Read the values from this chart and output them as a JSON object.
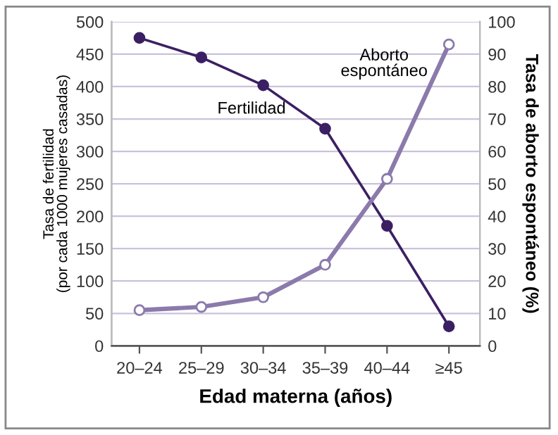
{
  "chart_data": {
    "type": "line",
    "xlabel": "Edad materna (años)",
    "ylabel": "Tasa de fertilidad\n(por cada 1000 mujeres casadas)",
    "y2label": "Tasa de aborto espontáneo (%)",
    "categories": [
      "20–24",
      "25–29",
      "30–34",
      "35–39",
      "40–44",
      "≥45"
    ],
    "series": [
      {
        "name": "Fertilidad",
        "color": "#3b1f63",
        "values": [
          475,
          445,
          402,
          335,
          185,
          30
        ]
      },
      {
        "name": "Aborto\nespontáneo",
        "color": "#8b7aab",
        "axis": "y2",
        "values": [
          11,
          12,
          15,
          25,
          51.5,
          93
        ]
      }
    ],
    "ylim": [
      0,
      500
    ],
    "yticks": [
      0,
      50,
      100,
      150,
      200,
      250,
      300,
      350,
      400,
      450,
      500
    ],
    "y2lim": [
      0,
      100
    ],
    "y2ticks": [
      0,
      10,
      20,
      30,
      40,
      50,
      60,
      70,
      80,
      90,
      100
    ],
    "grid": "y",
    "marker": "circle",
    "legend": false
  }
}
